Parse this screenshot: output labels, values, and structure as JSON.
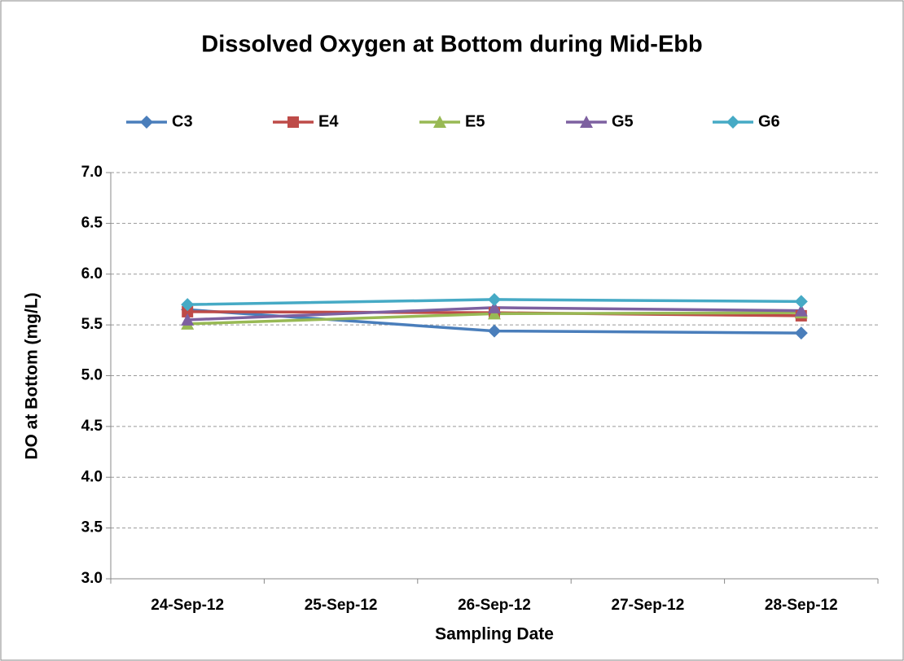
{
  "chart_data": {
    "type": "line",
    "title": "Dissolved Oxygen at Bottom during Mid-Ebb",
    "xlabel": "Sampling Date",
    "ylabel": "DO at Bottom (mg/L)",
    "x": [
      "24-Sep-12",
      "26-Sep-12",
      "28-Sep-12"
    ],
    "xticks": [
      "24-Sep-12",
      "25-Sep-12",
      "26-Sep-12",
      "27-Sep-12",
      "28-Sep-12"
    ],
    "series": [
      {
        "name": "C3",
        "color": "#4a7ebb",
        "marker": "diamond",
        "values": [
          5.65,
          5.44,
          5.42
        ]
      },
      {
        "name": "E4",
        "color": "#be4b48",
        "marker": "square",
        "values": [
          5.63,
          5.62,
          5.59
        ]
      },
      {
        "name": "E5",
        "color": "#98b954",
        "marker": "triangle",
        "values": [
          5.51,
          5.61,
          5.62
        ]
      },
      {
        "name": "G5",
        "color": "#7d60a0",
        "marker": "triangle",
        "values": [
          5.55,
          5.67,
          5.64
        ]
      },
      {
        "name": "G6",
        "color": "#46aac5",
        "marker": "diamond",
        "values": [
          5.7,
          5.75,
          5.73
        ]
      }
    ],
    "ylim": [
      3.0,
      7.0
    ],
    "yticks": [
      {
        "value": 3,
        "label": "3.0"
      },
      3.5,
      {
        "value": 4,
        "label": "4.0"
      },
      4.5,
      {
        "value": 5,
        "label": "5.0"
      },
      5.5,
      {
        "value": 6,
        "label": "6.0"
      },
      6.5,
      {
        "value": 7,
        "label": "7.0"
      }
    ],
    "grid": true,
    "legend": "top"
  }
}
